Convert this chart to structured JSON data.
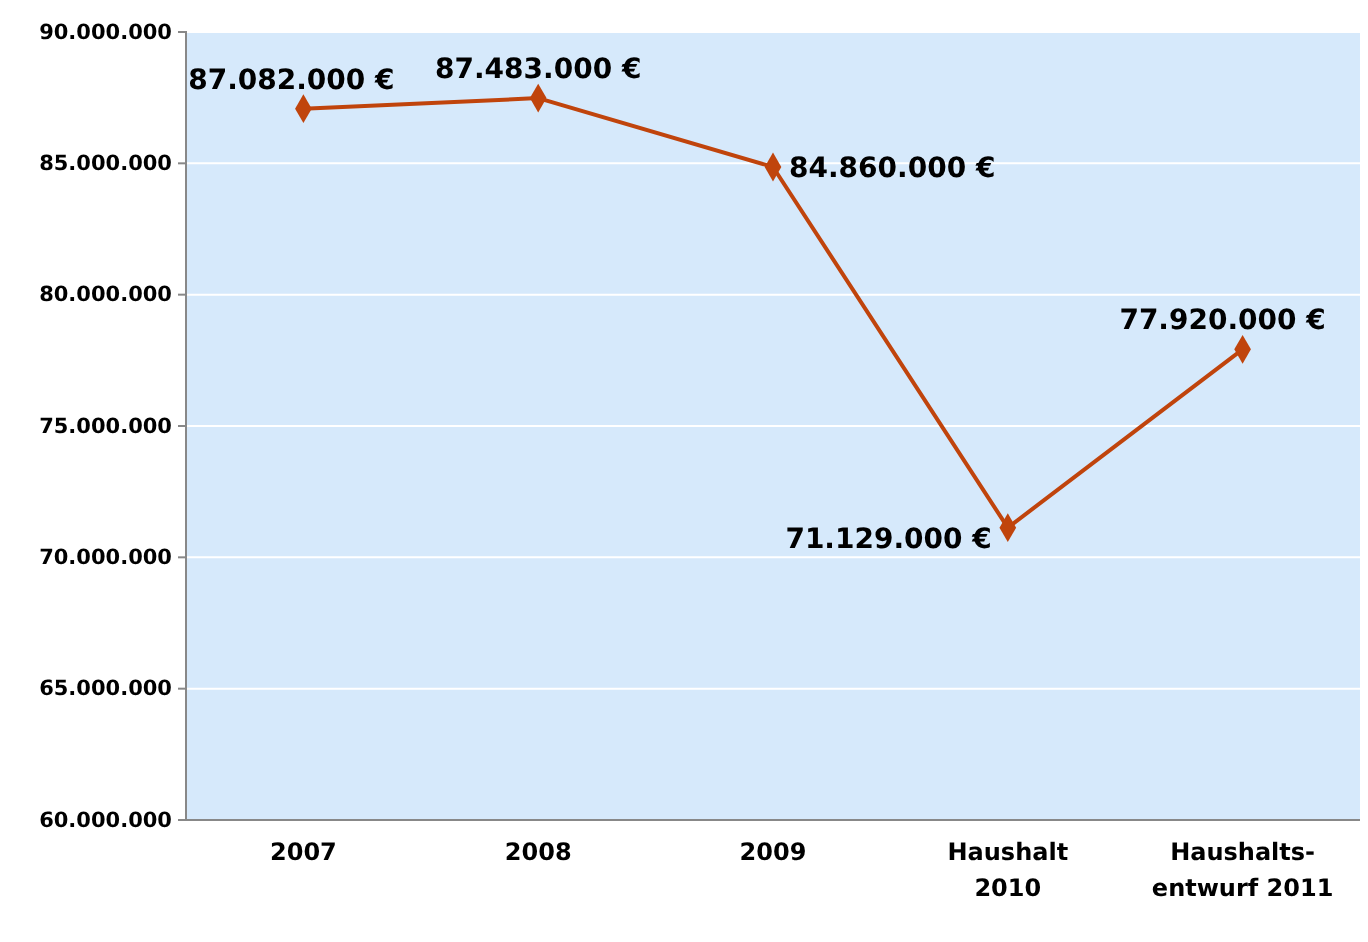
{
  "chart_data": {
    "type": "line",
    "categories": [
      "2007",
      "2008",
      "2009",
      "Haushalt\n2010",
      "Haushalts-\nentwurf 2011"
    ],
    "series": [
      {
        "color": "#c0440c",
        "values": [
          87082000,
          87483000,
          84860000,
          71129000,
          77920000
        ],
        "value_labels": [
          "87.082.000 €",
          "87.483.000 €",
          "84.860.000 €",
          "71.129.000 €",
          "77.920.000 €"
        ]
      }
    ],
    "ylim": [
      60000000,
      90000000
    ],
    "yticks": [
      {
        "value": 60000000,
        "label": "60.000.000"
      },
      {
        "value": 65000000,
        "label": "65.000.000"
      },
      {
        "value": 70000000,
        "label": "70.000.000"
      },
      {
        "value": 75000000,
        "label": "75.000.000"
      },
      {
        "value": 80000000,
        "label": "80.000.000"
      },
      {
        "value": 85000000,
        "label": "85.000.000"
      },
      {
        "value": 90000000,
        "label": "90.000.000"
      }
    ],
    "grid": "y",
    "marker": "diamond",
    "line_style": "solid"
  }
}
